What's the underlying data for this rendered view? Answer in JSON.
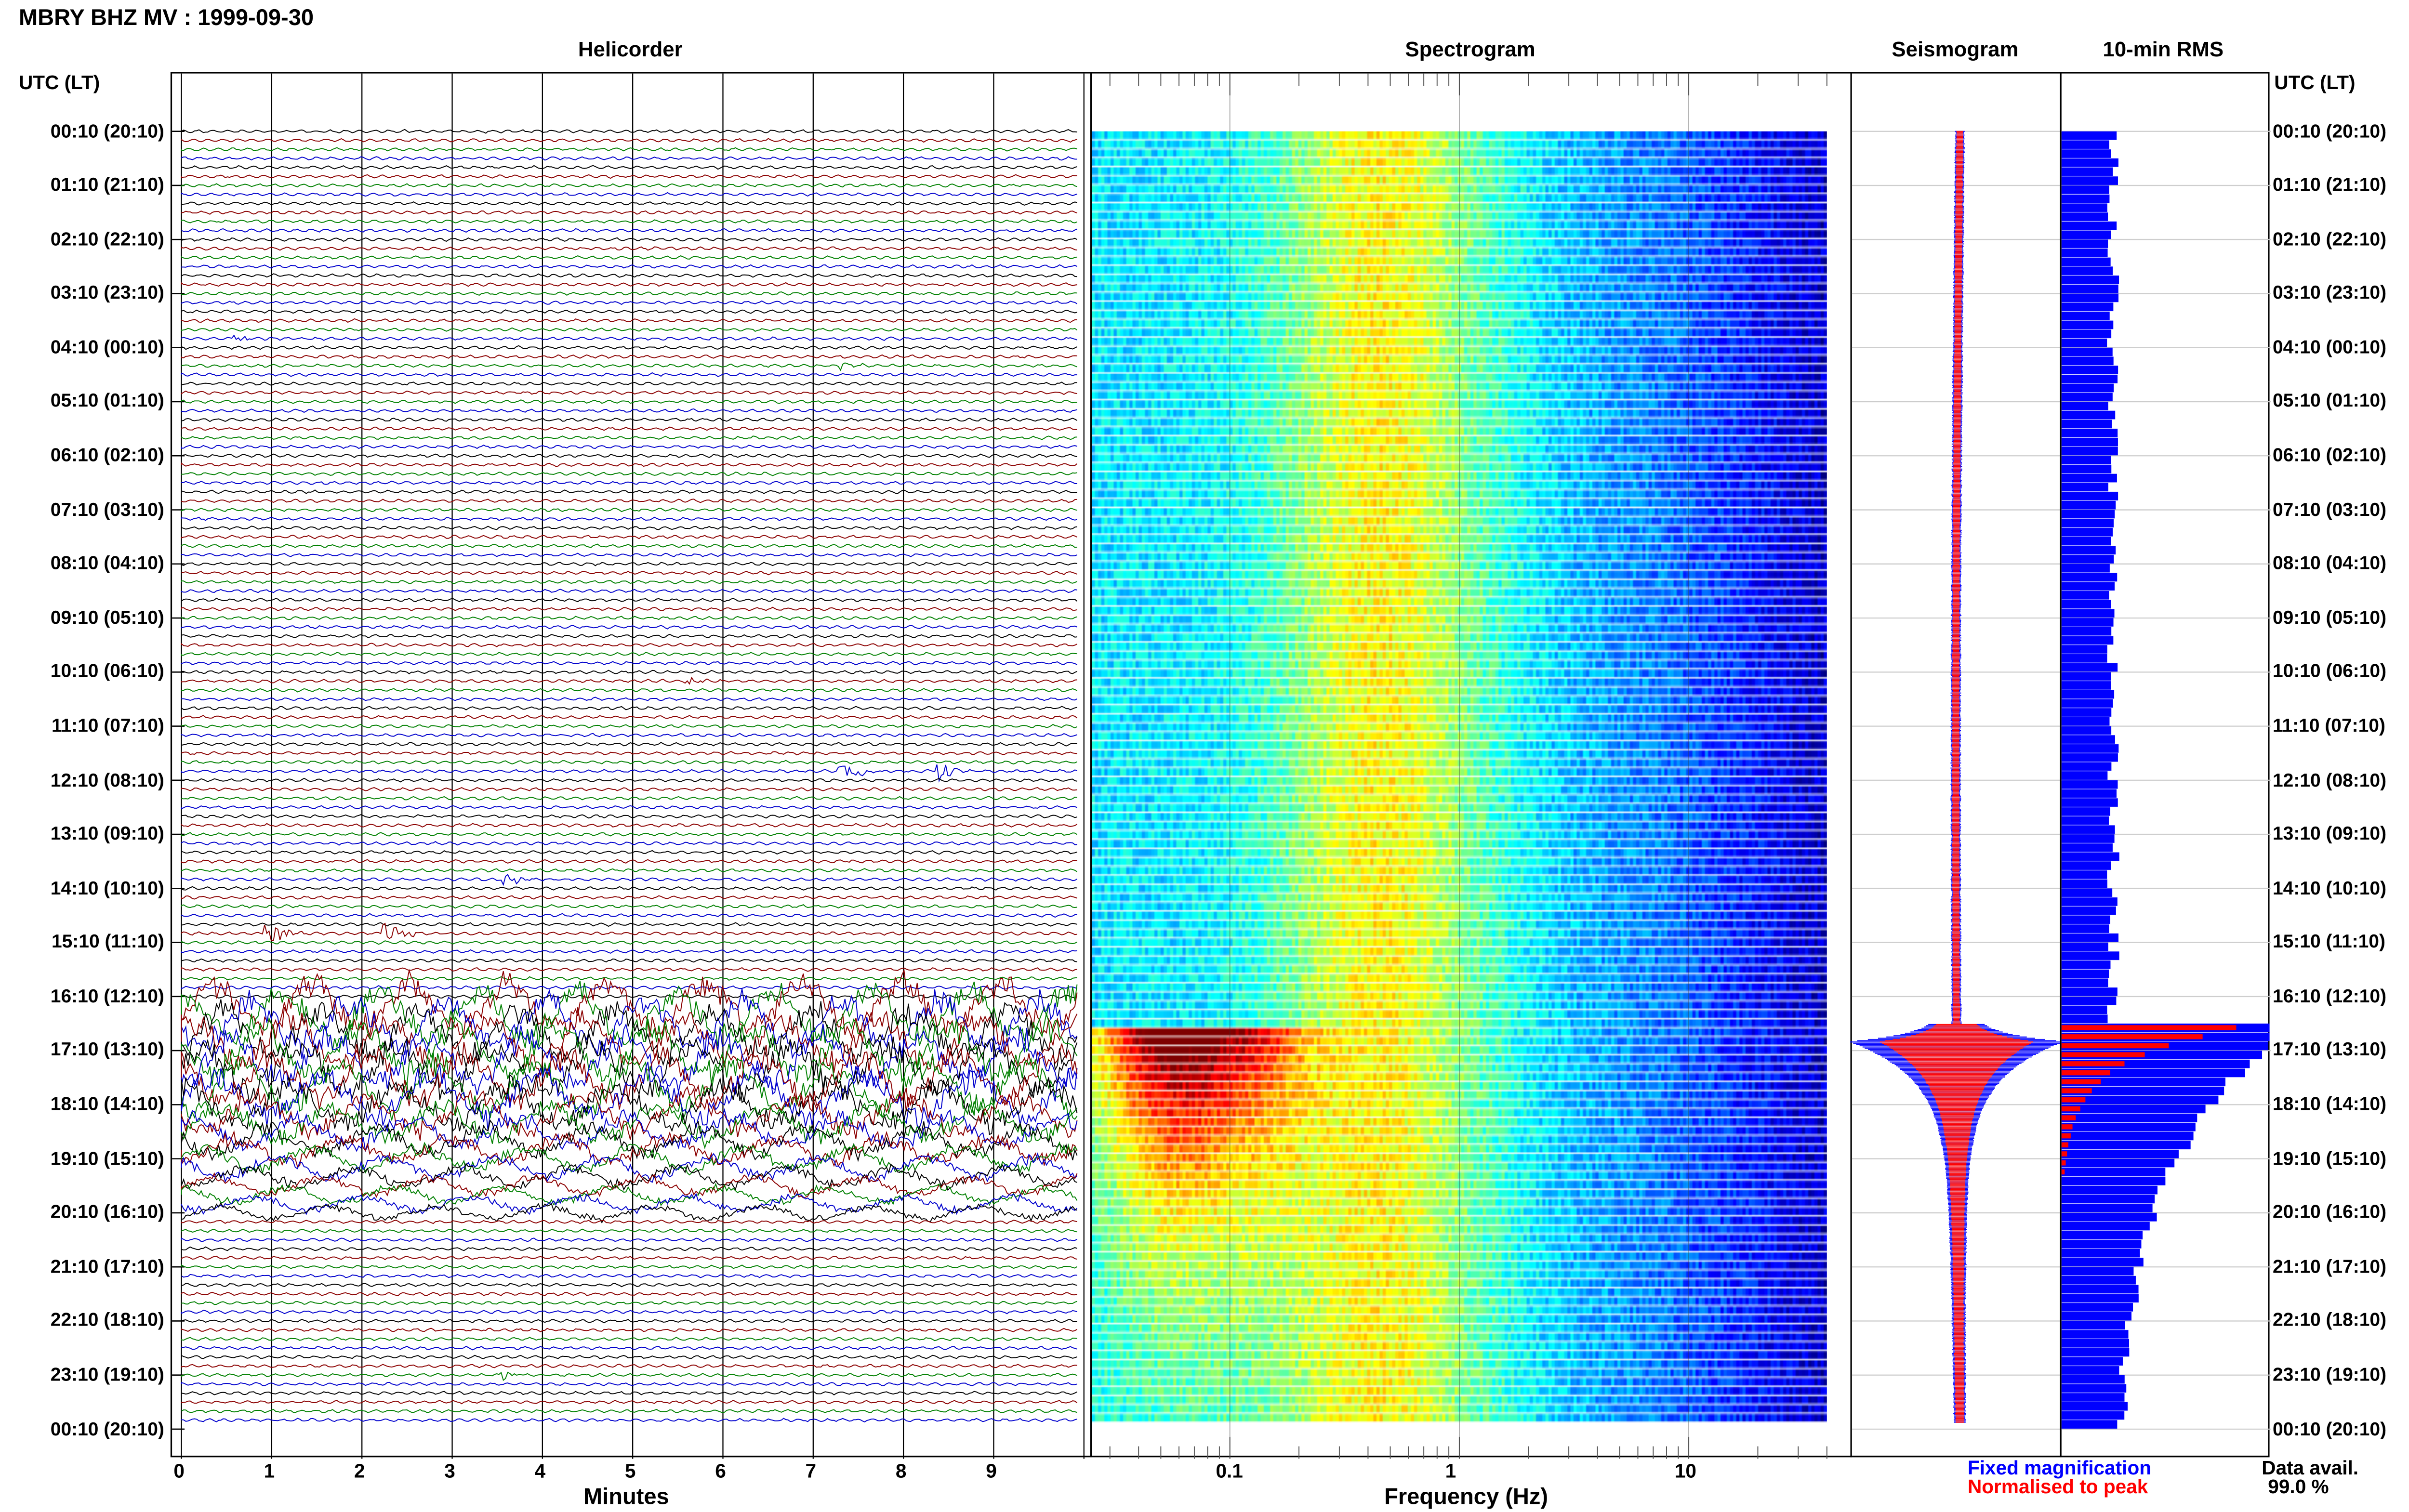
{
  "header": {
    "title": "MBRY BHZ MV : 1999-09-30"
  },
  "panels": {
    "helicorder": "Helicorder",
    "spectrogram": "Spectrogram",
    "seismogram": "Seismogram",
    "rms": "10-min RMS"
  },
  "axis": {
    "left_header": "UTC (LT)",
    "right_header": "UTC (LT)",
    "time_labels": [
      "00:10 (20:10)",
      "01:10 (21:10)",
      "02:10 (22:10)",
      "03:10 (23:10)",
      "04:10 (00:10)",
      "05:10 (01:10)",
      "06:10 (02:10)",
      "07:10 (03:10)",
      "08:10 (04:10)",
      "09:10 (05:10)",
      "10:10 (06:10)",
      "11:10 (07:10)",
      "12:10 (08:10)",
      "13:10 (09:10)",
      "14:10 (10:10)",
      "15:10 (11:10)",
      "16:10 (12:10)",
      "17:10 (13:10)",
      "18:10 (14:10)",
      "19:10 (15:10)",
      "20:10 (16:10)",
      "21:10 (17:10)",
      "22:10 (18:10)",
      "23:10 (19:10)",
      "00:10 (20:10)"
    ],
    "minutes_label": "Minutes",
    "minutes_ticks": [
      "0",
      "1",
      "2",
      "3",
      "4",
      "5",
      "6",
      "7",
      "8",
      "9"
    ],
    "frequency_label": "Frequency (Hz)",
    "frequency_ticks": [
      "0.1",
      "1",
      "10"
    ]
  },
  "legend": {
    "fixed": "Fixed magnification",
    "normalised": "Normalised to peak",
    "data_avail_label": "Data avail.",
    "data_avail_value": "99.0 %"
  },
  "colors": {
    "trace_cycle": [
      "#000000",
      "#8b0000",
      "#008000",
      "#0000cd"
    ],
    "fixed": "#0000ff",
    "normalised": "#ff0000"
  },
  "chart_data": [
    {
      "type": "helicorder",
      "title": "Helicorder",
      "xlabel": "Minutes",
      "xlim": [
        0,
        10
      ],
      "rows": 144,
      "row_minutes": 10,
      "events": [
        {
          "row_time": "04:00",
          "minute": 0.6,
          "size": "small"
        },
        {
          "row_time": "04:30",
          "minute": 7.3,
          "size": "small"
        },
        {
          "row_time": "10:20",
          "minute": 5.6,
          "size": "small"
        },
        {
          "row_time": "12:00",
          "minute": 7.3,
          "size": "large"
        },
        {
          "row_time": "12:00",
          "minute": 8.4,
          "size": "medium"
        },
        {
          "row_time": "14:00",
          "minute": 3.6,
          "size": "medium"
        },
        {
          "row_time": "15:00",
          "minute": 0.95,
          "size": "large"
        },
        {
          "row_time": "15:00",
          "minute": 2.25,
          "size": "large"
        },
        {
          "row_time": "23:10",
          "minute": 3.55,
          "size": "small"
        }
      ],
      "high_activity_start": "16:20",
      "decay_end": "20:10"
    },
    {
      "type": "heatmap",
      "title": "Spectrogram",
      "xlabel": "Frequency (Hz)",
      "x_scale": "log",
      "xlim": [
        0.025,
        40
      ],
      "strong_event_start": "16:50",
      "strong_event_band_hz": [
        0.03,
        0.3
      ]
    },
    {
      "type": "seismogram",
      "title": "Seismogram",
      "series": [
        {
          "name": "Fixed magnification",
          "color": "#0000ff"
        },
        {
          "name": "Normalised to peak",
          "color": "#ff0000"
        }
      ],
      "peak_time": "17:00"
    },
    {
      "type": "bar",
      "title": "10-min RMS",
      "orientation": "horizontal",
      "baseline_relative": 1.0,
      "peak_time": "17:00",
      "series": [
        {
          "name": "Fixed magnification",
          "color": "#0000ff"
        },
        {
          "name": "Normalised to peak",
          "color": "#ff0000"
        }
      ]
    }
  ]
}
